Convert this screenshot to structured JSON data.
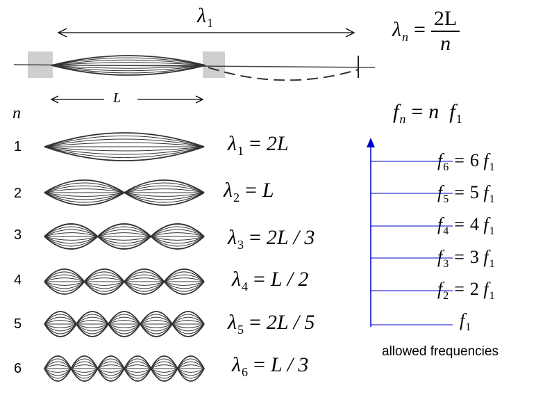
{
  "top": {
    "lambda_label": "λ",
    "lambda_sub": "1",
    "L_label": "L"
  },
  "general": {
    "lambda_n_lhs": "λ",
    "lambda_n_sub": "n",
    "lambda_n_num": "2L",
    "lambda_n_den": "n",
    "fn_lhs": "f",
    "fn_sub": "n",
    "fn_rhs_n": "n",
    "fn_rhs_f": "f",
    "fn_rhs_sub": "1"
  },
  "n_header": "n",
  "modes": [
    {
      "n": "1",
      "sym": "λ",
      "sub": "1",
      "rhs": "2L"
    },
    {
      "n": "2",
      "sym": "λ",
      "sub": "2",
      "rhs": "L"
    },
    {
      "n": "3",
      "sym": "λ",
      "sub": "3",
      "rhs": "2L / 3"
    },
    {
      "n": "4",
      "sym": "λ",
      "sub": "4",
      "rhs": "L / 2"
    },
    {
      "n": "5",
      "sym": "λ",
      "sub": "5",
      "rhs": "2L / 5"
    },
    {
      "n": "6",
      "sym": "λ",
      "sub": "6",
      "rhs": "L / 3"
    }
  ],
  "frequency_levels": [
    {
      "sym": "f",
      "sub": "6",
      "rhs_num": "6",
      "rhs_f": "f",
      "rhs_sub": "1"
    },
    {
      "sym": "f",
      "sub": "5",
      "rhs_num": "5",
      "rhs_f": "f",
      "rhs_sub": "1"
    },
    {
      "sym": "f",
      "sub": "4",
      "rhs_num": "4",
      "rhs_f": "f",
      "rhs_sub": "1"
    },
    {
      "sym": "f",
      "sub": "3",
      "rhs_num": "3",
      "rhs_f": "f",
      "rhs_sub": "1"
    },
    {
      "sym": "f",
      "sub": "2",
      "rhs_num": "2",
      "rhs_f": "f",
      "rhs_sub": "1"
    }
  ],
  "f1_label": {
    "sym": "f",
    "sub": "1"
  },
  "caption": "allowed frequencies",
  "colors": {
    "axis": "#0000cc",
    "string": "#333333"
  }
}
